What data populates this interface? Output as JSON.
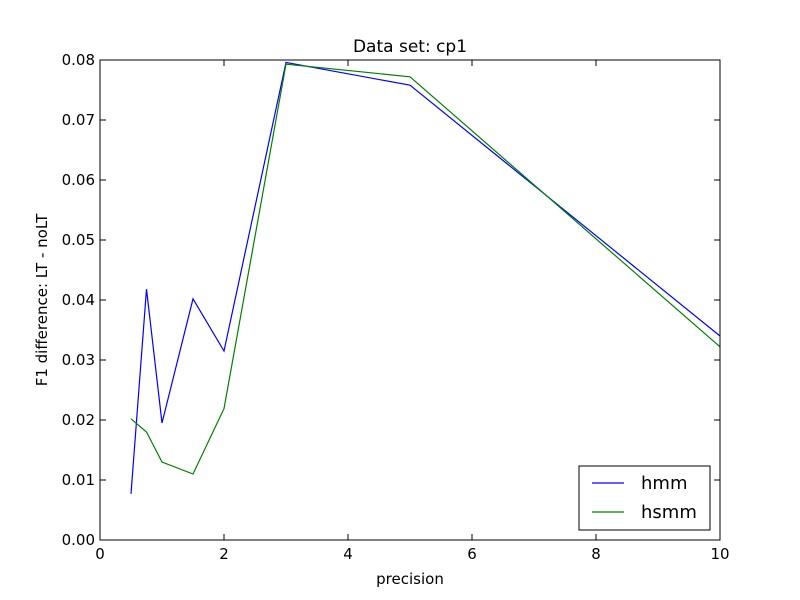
{
  "chart_data": {
    "type": "line",
    "title": "Data set: cp1",
    "xlabel": "precision",
    "ylabel": "F1 difference: LT - noLT",
    "xlim": [
      0,
      10
    ],
    "ylim": [
      0,
      0.08
    ],
    "xticks": [
      0,
      2,
      4,
      6,
      8,
      10
    ],
    "xtick_labels": [
      "0",
      "2",
      "4",
      "6",
      "8",
      "10"
    ],
    "yticks": [
      0,
      0.01,
      0.02,
      0.03,
      0.04,
      0.05,
      0.06,
      0.07,
      0.08
    ],
    "ytick_labels": [
      "0.00",
      "0.01",
      "0.02",
      "0.03",
      "0.04",
      "0.05",
      "0.06",
      "0.07",
      "0.08"
    ],
    "grid": false,
    "legend_position": "lower-right",
    "series": [
      {
        "name": "hmm",
        "color": "#0000ff",
        "x": [
          0.5,
          0.75,
          1,
          1.5,
          2,
          3,
          5,
          10
        ],
        "y": [
          0.0077,
          0.0418,
          0.0195,
          0.0402,
          0.0315,
          0.0796,
          0.0758,
          0.034
        ]
      },
      {
        "name": "hsmm",
        "color": "#008000",
        "x": [
          0.5,
          0.75,
          1,
          1.5,
          2,
          3,
          5,
          10
        ],
        "y": [
          0.0202,
          0.018,
          0.013,
          0.011,
          0.0219,
          0.0793,
          0.0772,
          0.0322
        ]
      }
    ]
  }
}
